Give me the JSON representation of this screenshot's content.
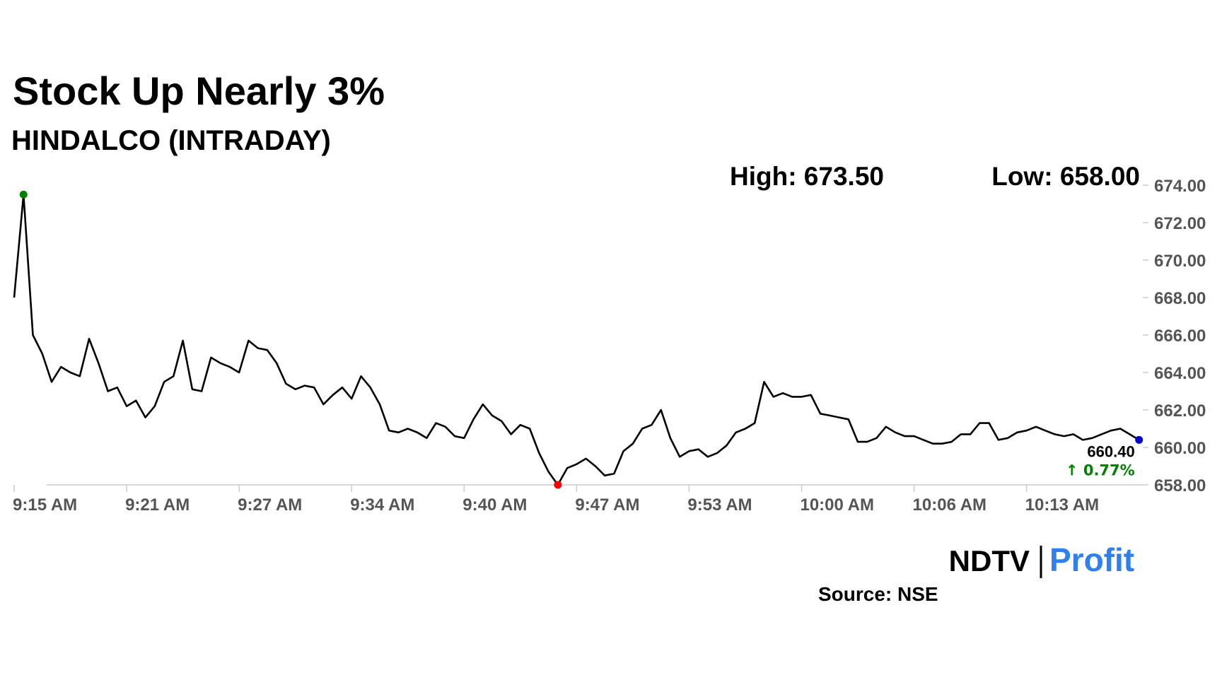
{
  "chart_data": {
    "type": "line",
    "title": "Stock Up Nearly 3%",
    "subtitle": "HINDALCO (INTRADAY)",
    "high_label": "High: 673.50",
    "low_label": "Low: 658.00",
    "last_label": "660.40",
    "change_label": "↑ 0.77%",
    "source": "Source: NSE",
    "logo": {
      "left": "NDTV",
      "right": "Profit"
    },
    "categories": [
      "9:15 AM",
      null,
      null,
      null,
      null,
      null,
      null,
      null,
      null,
      null,
      null,
      null,
      "9:21 AM",
      null,
      null,
      null,
      null,
      null,
      null,
      null,
      null,
      null,
      null,
      null,
      "9:27 AM",
      null,
      null,
      null,
      null,
      null,
      null,
      null,
      null,
      null,
      null,
      null,
      "9:34 AM",
      null,
      null,
      null,
      null,
      null,
      null,
      null,
      null,
      null,
      null,
      null,
      "9:40 AM",
      null,
      null,
      null,
      null,
      null,
      null,
      null,
      null,
      null,
      null,
      null,
      "9:47 AM",
      null,
      null,
      null,
      null,
      null,
      null,
      null,
      null,
      null,
      null,
      null,
      "9:53 AM",
      null,
      null,
      null,
      null,
      null,
      null,
      null,
      null,
      null,
      null,
      null,
      "10:00 AM",
      null,
      null,
      null,
      null,
      null,
      null,
      null,
      null,
      null,
      null,
      null,
      "10:06 AM",
      null,
      null,
      null,
      null,
      null,
      null,
      null,
      null,
      null,
      null,
      null,
      "10:13 AM",
      null,
      null,
      null,
      null,
      null,
      null,
      null,
      null,
      null,
      null,
      null,
      null
    ],
    "series": [
      {
        "color": "#000000",
        "values": [
          668.0,
          673.5,
          666.0,
          665.0,
          663.5,
          664.3,
          664.0,
          663.8,
          665.8,
          664.5,
          663.0,
          663.2,
          662.2,
          662.5,
          661.6,
          662.2,
          663.5,
          663.8,
          665.7,
          663.1,
          663.0,
          664.8,
          664.5,
          664.3,
          664.0,
          665.7,
          665.3,
          665.2,
          664.5,
          663.4,
          663.1,
          663.3,
          663.2,
          662.3,
          662.8,
          663.2,
          662.6,
          663.8,
          663.2,
          662.3,
          660.9,
          660.8,
          661.0,
          660.8,
          660.5,
          661.3,
          661.1,
          660.6,
          660.5,
          661.5,
          662.3,
          661.7,
          661.4,
          660.7,
          661.2,
          661.0,
          659.7,
          658.7,
          658.0,
          658.9,
          659.1,
          659.4,
          659.0,
          658.5,
          658.6,
          659.8,
          660.2,
          661.0,
          661.2,
          662.0,
          660.5,
          659.5,
          659.8,
          659.9,
          659.5,
          659.7,
          660.1,
          660.8,
          661.0,
          661.3,
          663.5,
          662.7,
          662.9,
          662.7,
          662.7,
          662.8,
          661.8,
          661.7,
          661.6,
          661.5,
          660.3,
          660.3,
          660.5,
          661.1,
          660.8,
          660.6,
          660.6,
          660.4,
          660.2,
          660.2,
          660.3,
          660.7,
          660.7,
          661.3,
          661.3,
          660.4,
          660.5,
          660.8,
          660.9,
          661.1,
          660.9,
          660.7,
          660.6,
          660.7,
          660.4,
          660.5,
          660.7,
          660.9,
          661.0,
          660.7,
          660.4
        ]
      }
    ],
    "markers": {
      "high": {
        "index": 1,
        "color": "#008000"
      },
      "low": {
        "index": 58,
        "color": "#ff0000"
      },
      "last": {
        "index": 120,
        "color": "#0000cc"
      }
    },
    "change_color": "#008000",
    "ylim": [
      658,
      674
    ],
    "yticks": [
      {
        "value": 658,
        "label": "658.00"
      },
      {
        "value": 660,
        "label": "660.00"
      },
      {
        "value": 662,
        "label": "662.00"
      },
      {
        "value": 664,
        "label": "664.00"
      },
      {
        "value": 666,
        "label": "666.00"
      },
      {
        "value": 668,
        "label": "668.00"
      },
      {
        "value": 670,
        "label": "670.00"
      },
      {
        "value": 672,
        "label": "672.00"
      },
      {
        "value": 674,
        "label": "674.00"
      }
    ]
  }
}
